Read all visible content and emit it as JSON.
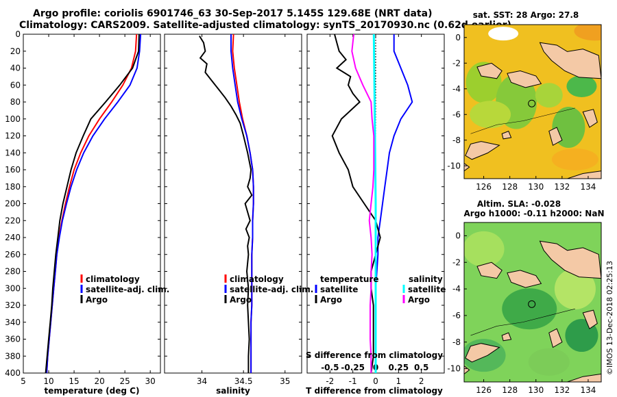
{
  "header": {
    "line1": "Argo profile: coriolis 6901746_63 30-Sep-2017 5.145S 129.68E (NRT data)",
    "line2": "Climatology: CARS2009. Satellite-adjusted climatology: synTS_20170930.nc (0.62d earlier)"
  },
  "colors": {
    "climatology": "#ff0000",
    "satellite": "#0000ff",
    "argo": "#000000",
    "diff_t_argo": "#ff00ff",
    "diff_s_sat": "#00ffff",
    "land": "#f4c9a6"
  },
  "chart_data": [
    {
      "type": "line",
      "id": "temperature",
      "xlabel": "temperature (deg C)",
      "ylabel": "",
      "xlim": [
        5,
        32
      ],
      "ylim": [
        400,
        0
      ],
      "xticks": [
        "5",
        "10",
        "15",
        "20",
        "25",
        "30"
      ],
      "yticks": [
        "0",
        "20",
        "40",
        "60",
        "80",
        "100",
        "120",
        "140",
        "160",
        "180",
        "200",
        "220",
        "240",
        "260",
        "280",
        "300",
        "320",
        "340",
        "360",
        "380",
        "400"
      ],
      "legend": [
        "climatology",
        "satellite-adj. clim.",
        "Argo"
      ],
      "series": [
        {
          "name": "climatology",
          "depth": [
            0,
            20,
            40,
            60,
            80,
            100,
            120,
            140,
            160,
            180,
            200,
            220,
            240,
            260,
            280,
            300,
            320,
            340,
            360,
            380,
            400
          ],
          "values": [
            27.3,
            27.1,
            26.3,
            24.6,
            22.4,
            20.0,
            17.9,
            16.3,
            15.0,
            14.1,
            13.3,
            12.6,
            12.0,
            11.6,
            11.3,
            11.0,
            10.7,
            10.4,
            10.1,
            9.8,
            9.6
          ]
        },
        {
          "name": "satellite-adj. clim.",
          "depth": [
            0,
            20,
            40,
            60,
            80,
            100,
            120,
            140,
            160,
            180,
            200,
            220,
            240,
            260,
            280,
            300,
            320,
            340,
            360,
            380,
            400
          ],
          "values": [
            28.1,
            27.9,
            27.4,
            26.0,
            23.6,
            21.0,
            18.7,
            16.9,
            15.5,
            14.4,
            13.5,
            12.7,
            12.1,
            11.6,
            11.3,
            11.0,
            10.7,
            10.4,
            10.1,
            9.8,
            9.6
          ]
        },
        {
          "name": "Argo",
          "depth": [
            0,
            20,
            40,
            60,
            80,
            100,
            120,
            140,
            160,
            180,
            200,
            220,
            240,
            260,
            280,
            300,
            320,
            340,
            360,
            380,
            400
          ],
          "values": [
            27.8,
            27.7,
            26.5,
            24.0,
            21.2,
            18.3,
            16.8,
            15.4,
            14.4,
            13.6,
            12.8,
            12.2,
            11.8,
            11.4,
            11.1,
            10.8,
            10.6,
            10.3,
            10.0,
            9.7,
            9.4
          ]
        }
      ]
    },
    {
      "type": "line",
      "id": "salinity",
      "xlabel": "salinity",
      "xlim": [
        33.55,
        35.2
      ],
      "ylim": [
        400,
        0
      ],
      "xticks": [
        "34",
        "34.5",
        "35"
      ],
      "legend": [
        "climatology",
        "satellite-adj. clim.",
        "Argo"
      ],
      "series": [
        {
          "name": "climatology",
          "depth": [
            0,
            20,
            40,
            60,
            80,
            100,
            120,
            140,
            160,
            180,
            200,
            220,
            240,
            260,
            280,
            300,
            320,
            340,
            360,
            380,
            400
          ],
          "values": [
            34.38,
            34.37,
            34.39,
            34.42,
            34.45,
            34.49,
            34.54,
            34.58,
            34.61,
            34.62,
            34.62,
            34.61,
            34.61,
            34.6,
            34.6,
            34.6,
            34.6,
            34.59,
            34.59,
            34.59,
            34.59
          ]
        },
        {
          "name": "satellite-adj. clim.",
          "depth": [
            0,
            20,
            40,
            60,
            80,
            100,
            120,
            140,
            160,
            180,
            200,
            220,
            240,
            260,
            280,
            300,
            320,
            340,
            360,
            380,
            400
          ],
          "values": [
            34.35,
            34.35,
            34.37,
            34.4,
            34.43,
            34.48,
            34.54,
            34.58,
            34.61,
            34.62,
            34.62,
            34.61,
            34.61,
            34.6,
            34.6,
            34.6,
            34.6,
            34.59,
            34.59,
            34.59,
            34.59
          ]
        },
        {
          "name": "Argo",
          "depth": [
            2,
            10,
            20,
            28,
            35,
            45,
            55,
            65,
            75,
            85,
            95,
            105,
            120,
            140,
            160,
            170,
            180,
            190,
            200,
            210,
            220,
            230,
            240,
            250,
            260,
            280,
            300,
            320,
            340,
            360,
            380,
            400
          ],
          "values": [
            33.97,
            34.02,
            34.04,
            33.98,
            34.06,
            34.04,
            34.12,
            34.2,
            34.28,
            34.35,
            34.41,
            34.46,
            34.5,
            34.55,
            34.59,
            34.58,
            34.55,
            34.6,
            34.52,
            34.55,
            34.58,
            34.53,
            34.57,
            34.55,
            34.56,
            34.54,
            34.56,
            34.55,
            34.56,
            34.57,
            34.56,
            34.56
          ]
        }
      ]
    },
    {
      "type": "line",
      "id": "difference",
      "xlabel": "T difference from climatology",
      "xlabel2": "S difference from climatology",
      "xlim": [
        -3,
        3
      ],
      "s_xlim": [
        -0.75,
        0.75
      ],
      "ylim": [
        400,
        0
      ],
      "xticks": [
        "-2",
        "-1",
        "0",
        "1",
        "2"
      ],
      "s_xticks": [
        "-0.5",
        "-0.25",
        "0",
        "0.25",
        "0.5"
      ],
      "legend_left_title": "temperature",
      "legend_right_title": "salinity",
      "legend_left": [
        "satellite",
        "Argo"
      ],
      "legend_right": [
        "satellite",
        "Argo"
      ],
      "series": [
        {
          "name": "T satellite",
          "depth": [
            0,
            20,
            40,
            60,
            80,
            100,
            120,
            140,
            160,
            180,
            200,
            220,
            240,
            260,
            280,
            300,
            320,
            340,
            360,
            380,
            400
          ],
          "values": [
            0.8,
            0.8,
            1.1,
            1.4,
            1.6,
            1.1,
            0.8,
            0.6,
            0.5,
            0.4,
            0.3,
            0.2,
            0.1,
            0.1,
            0.05,
            0.0,
            0.0,
            0.0,
            0.0,
            0.0,
            0.0
          ]
        },
        {
          "name": "T Argo",
          "depth": [
            0,
            10,
            20,
            30,
            40,
            50,
            60,
            70,
            80,
            100,
            120,
            140,
            160,
            180,
            200,
            220,
            240,
            260,
            280,
            300,
            320,
            340,
            360,
            380,
            400
          ],
          "values": [
            -1.8,
            -1.7,
            -1.6,
            -1.3,
            -1.7,
            -1.1,
            -1.2,
            -1.0,
            -0.7,
            -1.5,
            -1.9,
            -1.6,
            -1.2,
            -1.0,
            -0.5,
            0.0,
            0.2,
            0.0,
            -0.2,
            -0.2,
            -0.1,
            -0.1,
            -0.1,
            -0.1,
            -0.2
          ]
        },
        {
          "name": "S satellite",
          "depth": [
            0,
            100,
            200,
            300,
            400
          ],
          "values": [
            -0.02,
            -0.01,
            0.0,
            0.0,
            0.0
          ]
        },
        {
          "name": "S Argo",
          "depth": [
            0,
            20,
            40,
            60,
            80,
            100,
            120,
            140,
            160,
            180,
            200,
            220,
            240,
            260,
            280,
            300,
            320,
            340,
            360,
            380,
            400
          ],
          "values": [
            -0.24,
            -0.26,
            -0.22,
            -0.14,
            -0.05,
            -0.04,
            -0.02,
            -0.02,
            -0.02,
            -0.03,
            -0.05,
            -0.07,
            -0.05,
            -0.04,
            -0.05,
            -0.05,
            -0.06,
            -0.06,
            -0.06,
            -0.05,
            -0.05
          ]
        }
      ]
    },
    {
      "type": "heatmap",
      "id": "sst_map",
      "title": "sat. SST: 28 Argo: 27.8",
      "xticks": [
        "126",
        "128",
        "130",
        "132",
        "134"
      ],
      "yticks": [
        "0",
        "-2",
        "-4",
        "-6",
        "-8",
        "-10"
      ],
      "lon_range": [
        124.5,
        135
      ],
      "lat_range": [
        -11,
        1
      ],
      "argo_position": {
        "lon": 129.68,
        "lat": -5.145
      }
    },
    {
      "type": "heatmap",
      "id": "sla_map",
      "title": "Altim. SLA: -0.028",
      "subtitle": "Argo h1000: -0.11 h2000: NaN",
      "xticks": [
        "126",
        "128",
        "130",
        "132",
        "134"
      ],
      "yticks": [
        "0",
        "-2",
        "-4",
        "-6",
        "-8",
        "-10"
      ],
      "lon_range": [
        124.5,
        135
      ],
      "lat_range": [
        -11,
        1
      ],
      "argo_position": {
        "lon": 129.68,
        "lat": -5.145
      }
    }
  ],
  "footer": {
    "credit": "©IMOS 13-Dec-2018 02:25:13"
  }
}
